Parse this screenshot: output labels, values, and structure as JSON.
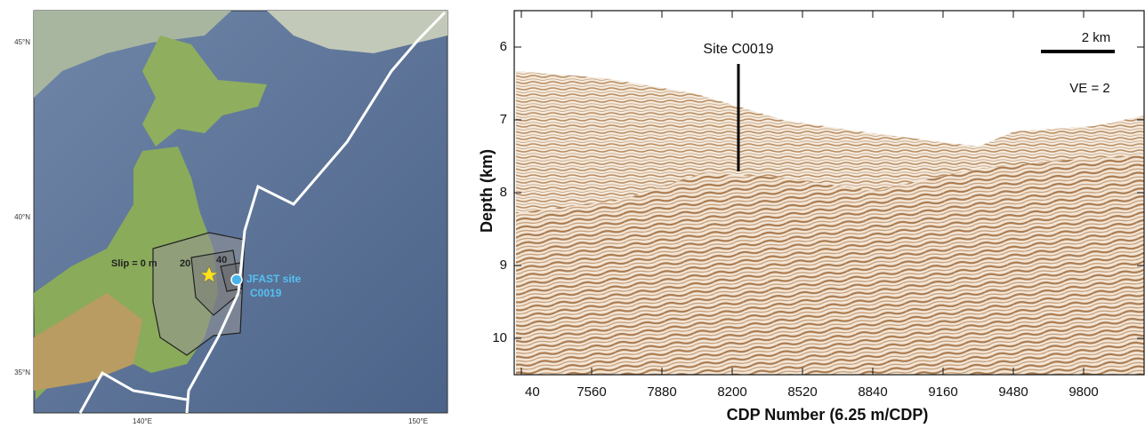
{
  "map": {
    "lat_labels": [
      "45°N",
      "40°N",
      "35°N"
    ],
    "lon_labels": [
      "140°E",
      "150°E"
    ],
    "slip_labels": [
      "Slip = 0 m",
      "20",
      "40"
    ],
    "site_label": [
      "JFAST site",
      "C0019"
    ]
  },
  "section": {
    "y_label": "Depth (km)",
    "x_label": "CDP Number (6.25 m/CDP)",
    "yticks": [
      "6",
      "7",
      "8",
      "9",
      "10"
    ],
    "xticks": [
      "40",
      "7560",
      "7880",
      "8200",
      "8520",
      "8840",
      "9160",
      "9480",
      "9800"
    ],
    "site": "Site C0019",
    "scale_bar": "2 km",
    "ve": "VE = 2"
  }
}
